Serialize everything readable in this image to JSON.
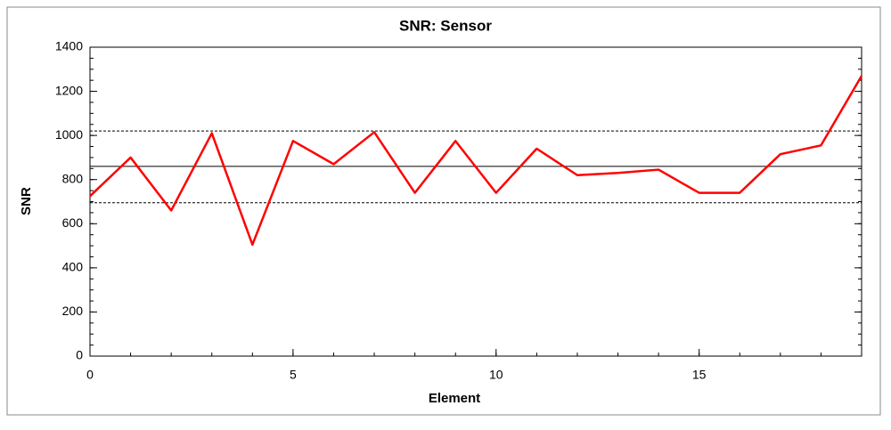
{
  "chart_data": {
    "type": "line",
    "title": "SNR: Sensor",
    "x_label": "Element",
    "y_label": "SNR",
    "x": [
      0,
      1,
      2,
      3,
      4,
      5,
      6,
      7,
      8,
      9,
      10,
      11,
      12,
      13,
      14,
      15,
      16,
      17,
      18,
      19
    ],
    "series": [
      {
        "color": "#ff0000",
        "values": [
          725,
          900,
          660,
          1010,
          505,
          975,
          870,
          1015,
          740,
          975,
          740,
          940,
          820,
          830,
          845,
          740,
          740,
          915,
          955,
          1270
        ]
      }
    ],
    "xlim": [
      0,
      19
    ],
    "xticks": [
      0,
      5,
      10,
      15
    ],
    "x_minor_step": 1,
    "ylim": [
      0,
      1400
    ],
    "yticks": [
      0,
      200,
      400,
      600,
      800,
      1000,
      1200,
      1400
    ],
    "y_minor_step": 50,
    "hlines": [
      {
        "value": 860,
        "dashed": false
      },
      {
        "value": 1020,
        "dashed": true
      },
      {
        "value": 695,
        "dashed": true
      }
    ]
  }
}
